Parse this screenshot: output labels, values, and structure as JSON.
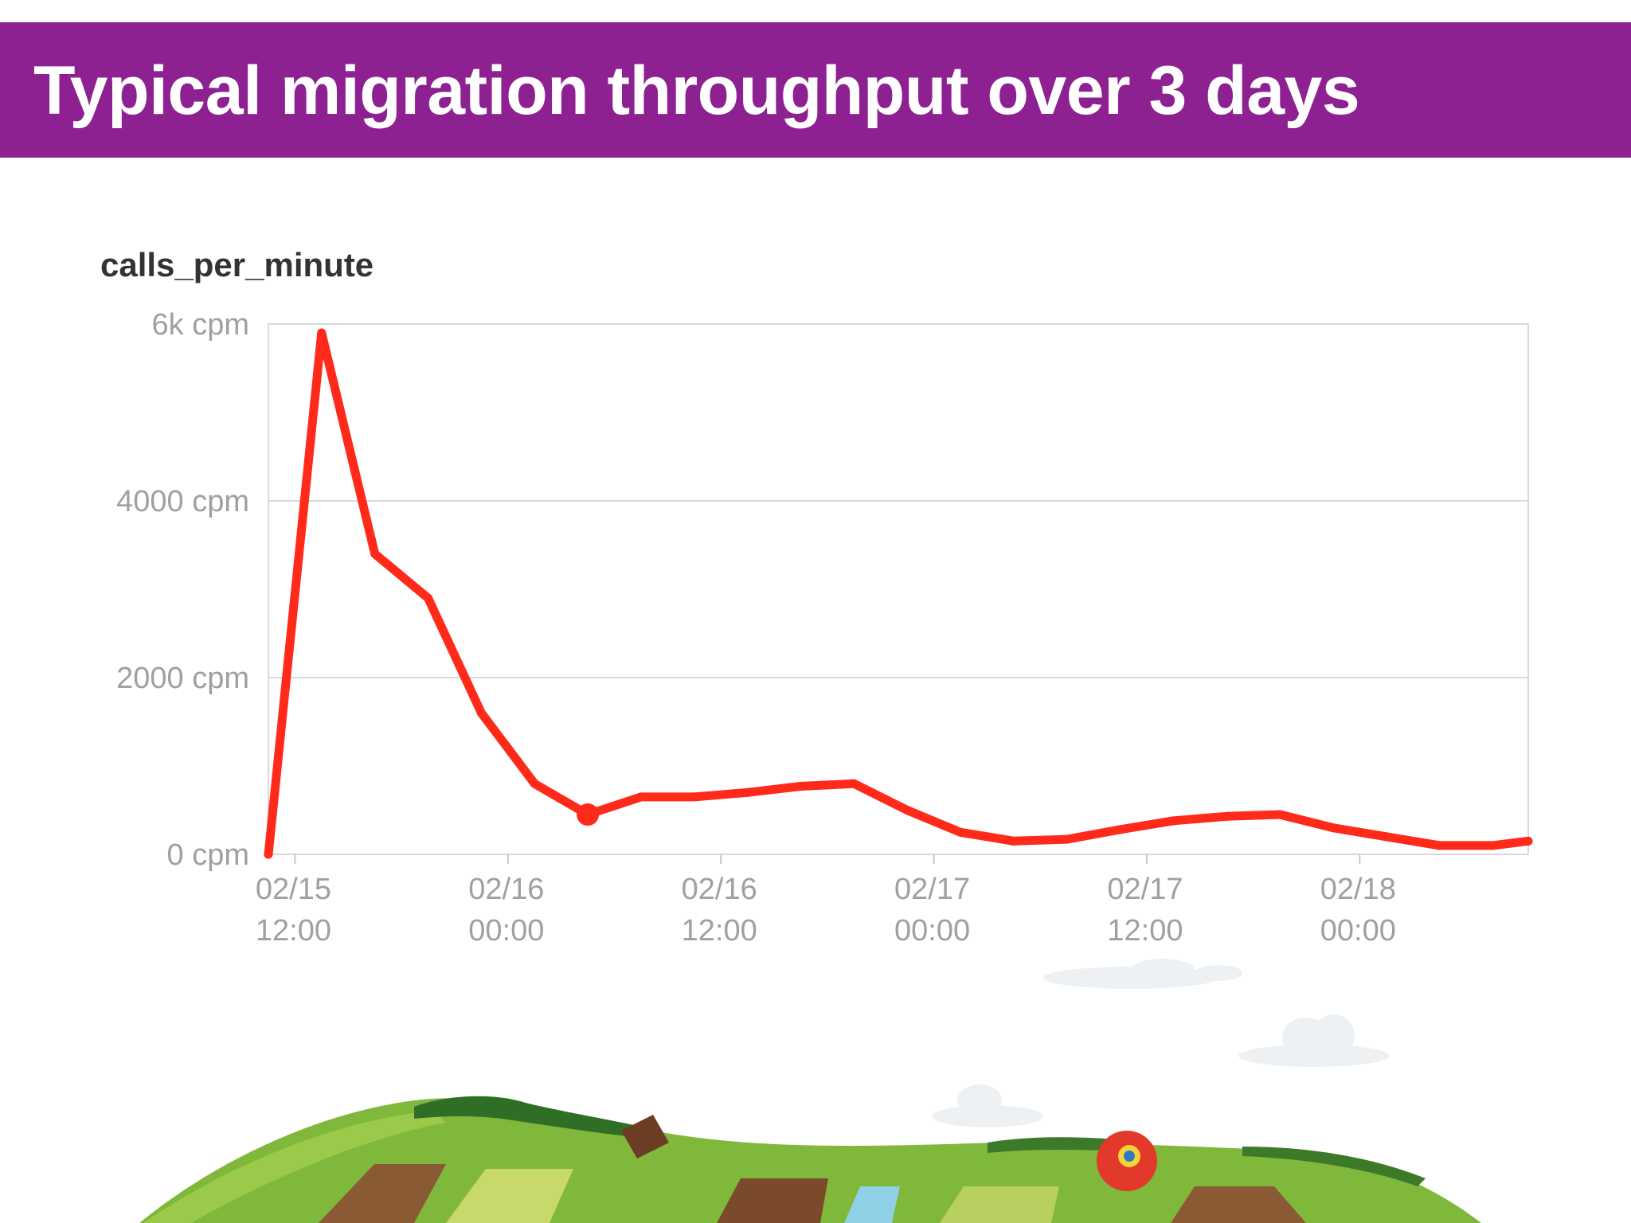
{
  "slide": {
    "title": "Typical migration throughput over 3 days",
    "title_bar_color": "#8e2192"
  },
  "chart_data": {
    "type": "line",
    "title": "calls_per_minute",
    "xlabel": "",
    "ylabel": "",
    "ylim": [
      0,
      6000
    ],
    "y_ticks": [
      {
        "value": 0,
        "label": "0 cpm"
      },
      {
        "value": 2000,
        "label": "2000 cpm"
      },
      {
        "value": 4000,
        "label": "4000 cpm"
      },
      {
        "value": 6000,
        "label": "6k cpm"
      }
    ],
    "xlim": [
      "2023-02-15 10:30",
      "2023-02-18 09:30"
    ],
    "x_ticks": [
      {
        "value": "2023-02-15 12:00",
        "label": [
          "02/15",
          "12:00"
        ]
      },
      {
        "value": "2023-02-16 00:00",
        "label": [
          "02/16",
          "00:00"
        ]
      },
      {
        "value": "2023-02-16 12:00",
        "label": [
          "02/16",
          "12:00"
        ]
      },
      {
        "value": "2023-02-17 00:00",
        "label": [
          "02/17",
          "00:00"
        ]
      },
      {
        "value": "2023-02-17 12:00",
        "label": [
          "02/17",
          "12:00"
        ]
      },
      {
        "value": "2023-02-18 00:00",
        "label": [
          "02/18",
          "00:00"
        ]
      }
    ],
    "grid": true,
    "line_color": "#ff2a1a",
    "series": [
      {
        "points": [
          {
            "x": "2023-02-15 10:30",
            "y": 0
          },
          {
            "x": "2023-02-15 13:30",
            "y": 5900
          },
          {
            "x": "2023-02-15 16:30",
            "y": 3400
          },
          {
            "x": "2023-02-15 19:30",
            "y": 2900
          },
          {
            "x": "2023-02-15 22:30",
            "y": 1600
          },
          {
            "x": "2023-02-16 01:30",
            "y": 800
          },
          {
            "x": "2023-02-16 04:30",
            "y": 450
          },
          {
            "x": "2023-02-16 07:30",
            "y": 650
          },
          {
            "x": "2023-02-16 10:30",
            "y": 650
          },
          {
            "x": "2023-02-16 13:30",
            "y": 700
          },
          {
            "x": "2023-02-16 16:30",
            "y": 770
          },
          {
            "x": "2023-02-16 19:30",
            "y": 800
          },
          {
            "x": "2023-02-16 22:30",
            "y": 500
          },
          {
            "x": "2023-02-17 01:30",
            "y": 250
          },
          {
            "x": "2023-02-17 04:30",
            "y": 150
          },
          {
            "x": "2023-02-17 07:30",
            "y": 170
          },
          {
            "x": "2023-02-17 10:30",
            "y": 280
          },
          {
            "x": "2023-02-17 13:30",
            "y": 380
          },
          {
            "x": "2023-02-17 16:30",
            "y": 430
          },
          {
            "x": "2023-02-17 19:30",
            "y": 450
          },
          {
            "x": "2023-02-17 22:30",
            "y": 300
          },
          {
            "x": "2023-02-18 01:30",
            "y": 200
          },
          {
            "x": "2023-02-18 04:30",
            "y": 100
          },
          {
            "x": "2023-02-18 07:30",
            "y": 100
          },
          {
            "x": "2023-02-18 09:30",
            "y": 150
          }
        ]
      }
    ],
    "highlight_point": {
      "x": "2023-02-16 04:30",
      "y": 450
    }
  }
}
